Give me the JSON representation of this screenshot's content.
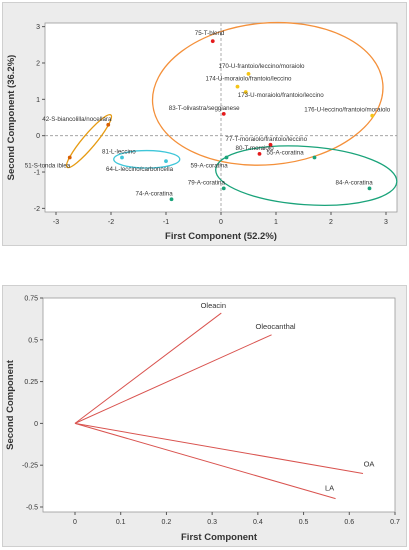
{
  "chart_data": [
    {
      "type": "scatter",
      "title": "",
      "xlabel": "First Component (52.2%)",
      "ylabel": "Second Component (36.2%)",
      "xlim": [
        -3.2,
        3.2
      ],
      "ylim": [
        -2.1,
        3.1
      ],
      "xticks": [
        -3,
        -2,
        -1,
        0,
        1,
        2,
        3
      ],
      "yticks": [
        -2,
        -1,
        0,
        1,
        2,
        3
      ],
      "reference_lines": {
        "x": 0,
        "y": 0
      },
      "points": [
        {
          "label": "75-T-blend",
          "x": -0.15,
          "y": 2.6,
          "color": "#e41a1c"
        },
        {
          "label": "170-U-frantoio/leccino/moraiolo",
          "x": 0.5,
          "y": 1.7,
          "color": "#f5c518"
        },
        {
          "label": "174-U-moraiolo/frantoio/leccino",
          "x": 0.3,
          "y": 1.35,
          "color": "#f5c518"
        },
        {
          "label": "173-U-moraiolo/frantoio/leccino",
          "x": 0.45,
          "y": 1.2,
          "color": "#f5c518"
        },
        {
          "label": "83-T-olivastra/seggianese",
          "x": 0.05,
          "y": 0.6,
          "color": "#e41a1c"
        },
        {
          "label": "42-S-biancolilla/nocellara",
          "x": -2.05,
          "y": 0.3,
          "color": "#d95f02"
        },
        {
          "label": "51-S-tonda iblea",
          "x": -2.75,
          "y": -0.6,
          "color": "#d95f02"
        },
        {
          "label": "176-U-leccino/frantoio/moraiolo",
          "x": 2.75,
          "y": 0.55,
          "color": "#f5c518"
        },
        {
          "label": "77-T-moraiolo/frantoio/leccino",
          "x": 0.9,
          "y": -0.25,
          "color": "#e41a1c"
        },
        {
          "label": "80-T-moraiolo",
          "x": 0.7,
          "y": -0.5,
          "color": "#e41a1c"
        },
        {
          "label": "59-A-coratina",
          "x": 0.1,
          "y": -0.6,
          "color": "#1aa37a"
        },
        {
          "label": "55-A-coratina",
          "x": 1.7,
          "y": -0.6,
          "color": "#1aa37a"
        },
        {
          "label": "84-A-coratina",
          "x": 2.7,
          "y": -1.45,
          "color": "#1aa37a"
        },
        {
          "label": "79-A-coratina",
          "x": 0.05,
          "y": -1.45,
          "color": "#1aa37a"
        },
        {
          "label": "74-A-coratina",
          "x": -0.9,
          "y": -1.75,
          "color": "#1aa37a"
        },
        {
          "label": "81-L-leccino",
          "x": -1.8,
          "y": -0.6,
          "color": "#3fc6d9"
        },
        {
          "label": "64-L-leccino/carboncella",
          "x": -1.0,
          "y": -0.7,
          "color": "#3fc6d9"
        }
      ]
    },
    {
      "type": "line",
      "title": "",
      "xlabel": "First Component",
      "ylabel": "Second Component",
      "xlim": [
        -0.07,
        0.7
      ],
      "ylim": [
        -0.53,
        0.75
      ],
      "xticks": [
        0.0,
        0.1,
        0.2,
        0.3,
        0.4,
        0.5,
        0.6,
        0.7
      ],
      "yticks": [
        -0.5,
        -0.25,
        0.0,
        0.25,
        0.5,
        0.75
      ],
      "loadings": [
        {
          "name": "Oleacin",
          "x": 0.32,
          "y": 0.66
        },
        {
          "name": "Oleocanthal",
          "x": 0.43,
          "y": 0.53
        },
        {
          "name": "OA",
          "x": 0.63,
          "y": -0.3
        },
        {
          "name": "LA",
          "x": 0.57,
          "y": -0.45
        }
      ]
    }
  ]
}
